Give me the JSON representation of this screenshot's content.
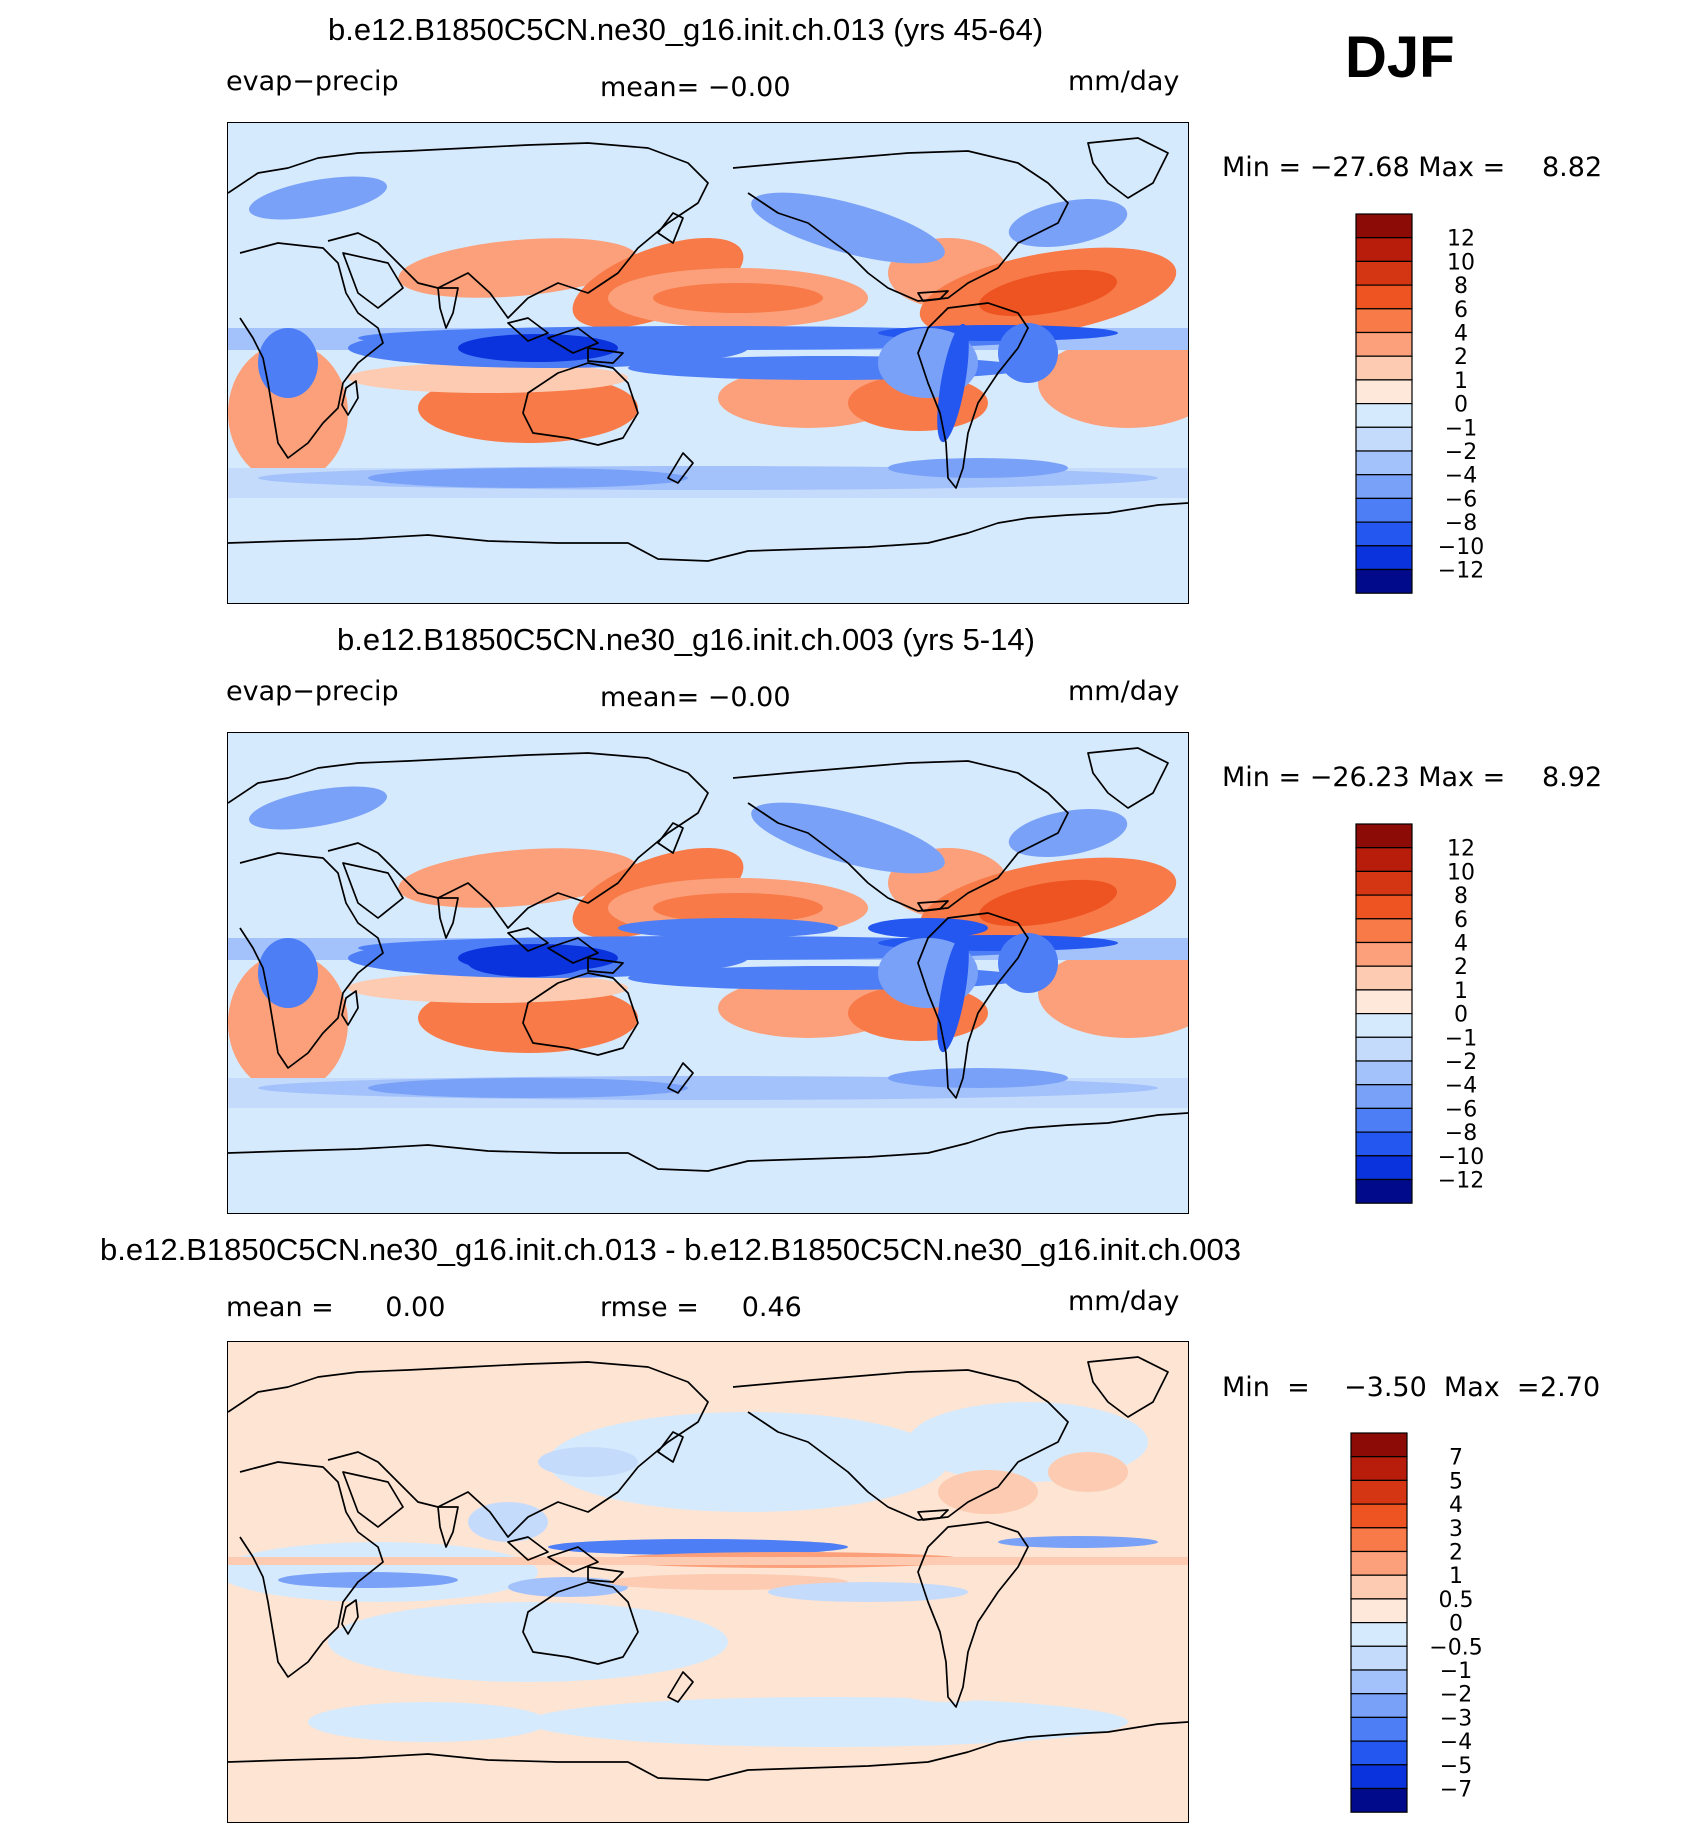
{
  "season": "DJF",
  "colors": {
    "ocean_base": "#d6eafd",
    "panel_c_base": "#fde4d3",
    "land_line": "#000000",
    "scale": [
      "#000a8a",
      "#0019b8",
      "#0a32dd",
      "#2456f0",
      "#4d7ef5",
      "#7aa1f8",
      "#a3c2fb",
      "#c5dbfc",
      "#d6eafd",
      "#fde8da",
      "#fccbb1",
      "#fba07a",
      "#f77a48",
      "#ee5422",
      "#d43512",
      "#b81d0c",
      "#8c0b06"
    ]
  },
  "panels": [
    {
      "title": "b.e12.B1850C5CN.ne30_g16.init.ch.013 (yrs 45-64)",
      "left_label": "evap−precip",
      "center_label": "mean=   −0.00",
      "right_label": "mm/day",
      "min_label": "Min  =  −27.68  Max  =",
      "max_value": "8.82",
      "colorbar_labels": [
        "12",
        "10",
        "8",
        "6",
        "4",
        "2",
        "1",
        "0",
        "−1",
        "−2",
        "−4",
        "−6",
        "−8",
        "−10",
        "−12"
      ]
    },
    {
      "title": "b.e12.B1850C5CN.ne30_g16.init.ch.003 (yrs 5-14)",
      "left_label": "evap−precip",
      "center_label": "mean=   −0.00",
      "right_label": "mm/day",
      "min_label": "Min  =  −26.23  Max  =",
      "max_value": "8.92",
      "colorbar_labels": [
        "12",
        "10",
        "8",
        "6",
        "4",
        "2",
        "1",
        "0",
        "−1",
        "−2",
        "−4",
        "−6",
        "−8",
        "−10",
        "−12"
      ]
    },
    {
      "title": "b.e12.B1850C5CN.ne30_g16.init.ch.013 - b.e12.B1850C5CN.ne30_g16.init.ch.003",
      "left_label": "mean =      0.00",
      "center_label": "rmse =     0.46",
      "right_label": "mm/day",
      "min_label": "Min  =    −3.50  Max  =",
      "max_value": "2.70",
      "colorbar_labels": [
        "7",
        "5",
        "4",
        "3",
        "2",
        "1",
        "0.5",
        "0",
        "−0.5",
        "−1",
        "−2",
        "−3",
        "−4",
        "−5",
        "−7"
      ]
    }
  ]
}
